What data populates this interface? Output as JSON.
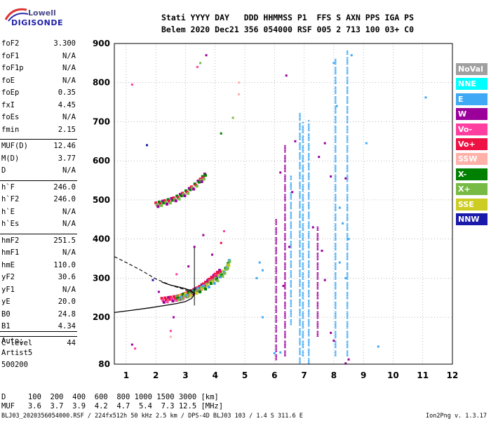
{
  "logo": {
    "line1": "Lowell",
    "line2": "DIGISONDE"
  },
  "header": {
    "row1": "Stati YYYY DAY   DDD HHMMSS P1  FFS S AXN PPS IGA PS",
    "row2": "Belem 2020 Dec21 356 054000 RSF 005 2 713 100 03+ C0"
  },
  "params": [
    {
      "name": "foF2",
      "value": "3.300"
    },
    {
      "name": "foF1",
      "value": "N/A"
    },
    {
      "name": "foF1p",
      "value": "N/A"
    },
    {
      "name": "foE",
      "value": "N/A"
    },
    {
      "name": "foEp",
      "value": "0.35"
    },
    {
      "name": "fxI",
      "value": "4.45"
    },
    {
      "name": "foEs",
      "value": "N/A"
    },
    {
      "name": "fmin",
      "value": "2.15"
    },
    {
      "name": "MUF(D)",
      "value": "12.46"
    },
    {
      "name": "M(D)",
      "value": "3.77"
    },
    {
      "name": "D",
      "value": "N/A"
    },
    {
      "name": "h`F",
      "value": "246.0"
    },
    {
      "name": "h`F2",
      "value": "246.0"
    },
    {
      "name": "h`E",
      "value": "N/A"
    },
    {
      "name": "h`Es",
      "value": "N/A"
    },
    {
      "name": "hmF2",
      "value": "251.5"
    },
    {
      "name": "hmF1",
      "value": "N/A"
    },
    {
      "name": "hmE",
      "value": "110.0"
    },
    {
      "name": "yF2",
      "value": "30.6"
    },
    {
      "name": "yF1",
      "value": "N/A"
    },
    {
      "name": "yE",
      "value": "20.0"
    },
    {
      "name": "B0",
      "value": "24.8"
    },
    {
      "name": "B1",
      "value": "4.34"
    },
    {
      "name": "C-level",
      "value": "44"
    }
  ],
  "auto": {
    "l1": "Auto:",
    "l2": "Artist5",
    "l3": "500200"
  },
  "legend": [
    {
      "label": "NoVal",
      "color": "#a0a0a0"
    },
    {
      "label": "NNE",
      "color": "#00ffff"
    },
    {
      "label": "E",
      "color": "#3fa9f5"
    },
    {
      "label": "W",
      "color": "#9b009b"
    },
    {
      "label": "Vo-",
      "color": "#ff3fa0"
    },
    {
      "label": "Vo+",
      "color": "#ee1144"
    },
    {
      "label": "SSW",
      "color": "#ffb0a8"
    },
    {
      "label": "X-",
      "color": "#008000"
    },
    {
      "label": "X+",
      "color": "#77bb44"
    },
    {
      "label": "SSE",
      "color": "#cccc22"
    },
    {
      "label": "NNW",
      "color": "#1a1aaa"
    }
  ],
  "bottom": {
    "row1": "D     100  200  400  600  800 1000 1500 3000 [km]",
    "row2": "MUF   3.6  3.7  3.9  4.2  4.7  5.4  7.3 12.5 [MHz]"
  },
  "footer": {
    "left": "BLJ03_2020356054000.RSF / 224fx512h 50 kHz 2.5 km / DPS-4D BLJ03 103 / 1.4 S 311.6 E",
    "right": "Ion2Png v. 1.3.17"
  },
  "chart_data": {
    "type": "scatter",
    "xlabel": "",
    "ylabel": "",
    "xlim": [
      0.6,
      12
    ],
    "ylim": [
      80,
      900
    ],
    "xticks": [
      1,
      2,
      3,
      4,
      5,
      6,
      7,
      8,
      9,
      10,
      11,
      12
    ],
    "yticks": [
      80,
      200,
      300,
      400,
      500,
      600,
      700,
      800,
      900
    ],
    "grid": true,
    "ordinary_trace": [
      {
        "x": 2.2,
        "y": 243
      },
      {
        "x": 2.5,
        "y": 246
      },
      {
        "x": 2.8,
        "y": 250
      },
      {
        "x": 3.0,
        "y": 256
      },
      {
        "x": 3.2,
        "y": 263
      },
      {
        "x": 3.4,
        "y": 270
      },
      {
        "x": 3.6,
        "y": 280
      },
      {
        "x": 3.8,
        "y": 292
      },
      {
        "x": 4.0,
        "y": 305
      },
      {
        "x": 4.2,
        "y": 318
      }
    ],
    "extraordinary_trace": [
      {
        "x": 2.7,
        "y": 248
      },
      {
        "x": 3.0,
        "y": 255
      },
      {
        "x": 3.3,
        "y": 264
      },
      {
        "x": 3.6,
        "y": 274
      },
      {
        "x": 3.9,
        "y": 288
      },
      {
        "x": 4.2,
        "y": 305
      },
      {
        "x": 4.4,
        "y": 325
      },
      {
        "x": 4.5,
        "y": 345
      }
    ],
    "second_hop_trace": [
      {
        "x": 2.0,
        "y": 487
      },
      {
        "x": 2.3,
        "y": 493
      },
      {
        "x": 2.6,
        "y": 500
      },
      {
        "x": 2.9,
        "y": 512
      },
      {
        "x": 3.2,
        "y": 528
      },
      {
        "x": 3.5,
        "y": 548
      },
      {
        "x": 3.7,
        "y": 565
      }
    ],
    "scatter_points": [
      {
        "x": 3.6,
        "y": 410,
        "c": "W"
      },
      {
        "x": 3.3,
        "y": 380,
        "c": "W"
      },
      {
        "x": 4.3,
        "y": 420,
        "c": "Vo-"
      },
      {
        "x": 4.2,
        "y": 390,
        "c": "Vo+"
      },
      {
        "x": 3.9,
        "y": 360,
        "c": "W"
      },
      {
        "x": 3.1,
        "y": 330,
        "c": "W"
      },
      {
        "x": 2.7,
        "y": 310,
        "c": "Vo-"
      },
      {
        "x": 3.5,
        "y": 850,
        "c": "X+"
      },
      {
        "x": 3.7,
        "y": 870,
        "c": "W"
      },
      {
        "x": 3.4,
        "y": 840,
        "c": "Vo-"
      },
      {
        "x": 4.6,
        "y": 710,
        "c": "X+"
      },
      {
        "x": 1.2,
        "y": 795,
        "c": "Vo-"
      },
      {
        "x": 1.7,
        "y": 640,
        "c": "NNW"
      },
      {
        "x": 4.8,
        "y": 800,
        "c": "SSW"
      },
      {
        "x": 4.8,
        "y": 770,
        "c": "SSW"
      },
      {
        "x": 6.4,
        "y": 818,
        "c": "W"
      },
      {
        "x": 6.7,
        "y": 650,
        "c": "W"
      },
      {
        "x": 6.2,
        "y": 570,
        "c": "W"
      },
      {
        "x": 6.6,
        "y": 520,
        "c": "W"
      },
      {
        "x": 7.7,
        "y": 645,
        "c": "W"
      },
      {
        "x": 7.5,
        "y": 610,
        "c": "W"
      },
      {
        "x": 7.9,
        "y": 560,
        "c": "W"
      },
      {
        "x": 8.4,
        "y": 555,
        "c": "W"
      },
      {
        "x": 7.3,
        "y": 430,
        "c": "W"
      },
      {
        "x": 7.6,
        "y": 370,
        "c": "W"
      },
      {
        "x": 6.5,
        "y": 380,
        "c": "W"
      },
      {
        "x": 6.3,
        "y": 280,
        "c": "W"
      },
      {
        "x": 7.7,
        "y": 295,
        "c": "W"
      },
      {
        "x": 8.5,
        "y": 92,
        "c": "W"
      },
      {
        "x": 8.4,
        "y": 82,
        "c": "W"
      },
      {
        "x": 8.2,
        "y": 480,
        "c": "E"
      },
      {
        "x": 8.3,
        "y": 440,
        "c": "E"
      },
      {
        "x": 8.5,
        "y": 400,
        "c": "E"
      },
      {
        "x": 8.2,
        "y": 340,
        "c": "E"
      },
      {
        "x": 8.4,
        "y": 300,
        "c": "E"
      },
      {
        "x": 8.0,
        "y": 850,
        "c": "E"
      },
      {
        "x": 8.6,
        "y": 870,
        "c": "E"
      },
      {
        "x": 8.1,
        "y": 740,
        "c": "E"
      },
      {
        "x": 9.1,
        "y": 645,
        "c": "E"
      },
      {
        "x": 11.1,
        "y": 762,
        "c": "E"
      },
      {
        "x": 9.5,
        "y": 125,
        "c": "E"
      },
      {
        "x": 5.5,
        "y": 340,
        "c": "E"
      },
      {
        "x": 5.6,
        "y": 320,
        "c": "E"
      },
      {
        "x": 5.4,
        "y": 300,
        "c": "E"
      },
      {
        "x": 5.6,
        "y": 200,
        "c": "E"
      },
      {
        "x": 1.3,
        "y": 120,
        "c": "Vo-"
      },
      {
        "x": 1.2,
        "y": 130,
        "c": "W"
      },
      {
        "x": 2.5,
        "y": 150,
        "c": "SSW"
      },
      {
        "x": 2.5,
        "y": 165,
        "c": "Vo-"
      },
      {
        "x": 2.6,
        "y": 200,
        "c": "W"
      },
      {
        "x": 1.9,
        "y": 295,
        "c": "NNW"
      },
      {
        "x": 2.1,
        "y": 265,
        "c": "W"
      },
      {
        "x": 7.9,
        "y": 160,
        "c": "W"
      },
      {
        "x": 8.0,
        "y": 140,
        "c": "W"
      },
      {
        "x": 6.0,
        "y": 108,
        "c": "E"
      },
      {
        "x": 6.2,
        "y": 110,
        "c": "E"
      },
      {
        "x": 4.2,
        "y": 670,
        "c": "X-"
      }
    ],
    "columns": [
      {
        "x": 6.05,
        "y0": 90,
        "y1": 450,
        "c": "W"
      },
      {
        "x": 6.35,
        "y0": 100,
        "y1": 640,
        "c": "W"
      },
      {
        "x": 6.55,
        "y0": 180,
        "y1": 560,
        "c": "E"
      },
      {
        "x": 6.85,
        "y0": 82,
        "y1": 720,
        "c": "E"
      },
      {
        "x": 6.95,
        "y0": 100,
        "y1": 700,
        "c": "E"
      },
      {
        "x": 7.15,
        "y0": 80,
        "y1": 705,
        "c": "E"
      },
      {
        "x": 7.45,
        "y0": 150,
        "y1": 430,
        "c": "W"
      },
      {
        "x": 8.05,
        "y0": 100,
        "y1": 860,
        "c": "E"
      },
      {
        "x": 8.45,
        "y0": 100,
        "y1": 880,
        "c": "E"
      }
    ],
    "profile_solid": [
      {
        "x": 0.6,
        "y": 212
      },
      {
        "x": 1.2,
        "y": 218
      },
      {
        "x": 1.8,
        "y": 224
      },
      {
        "x": 2.3,
        "y": 230
      },
      {
        "x": 2.7,
        "y": 235
      },
      {
        "x": 3.0,
        "y": 240
      },
      {
        "x": 3.2,
        "y": 248
      },
      {
        "x": 3.3,
        "y": 258
      },
      {
        "x": 3.2,
        "y": 268
      },
      {
        "x": 2.9,
        "y": 275
      },
      {
        "x": 2.5,
        "y": 282
      },
      {
        "x": 2.2,
        "y": 290
      }
    ],
    "profile_dashed": [
      {
        "x": 0.6,
        "y": 355
      },
      {
        "x": 1.0,
        "y": 340
      },
      {
        "x": 1.5,
        "y": 320
      },
      {
        "x": 2.0,
        "y": 298
      },
      {
        "x": 2.5,
        "y": 282
      },
      {
        "x": 3.0,
        "y": 270
      },
      {
        "x": 3.3,
        "y": 262
      }
    ],
    "cursor_line": {
      "x": 3.3,
      "y0": 230,
      "y1": 378
    }
  }
}
